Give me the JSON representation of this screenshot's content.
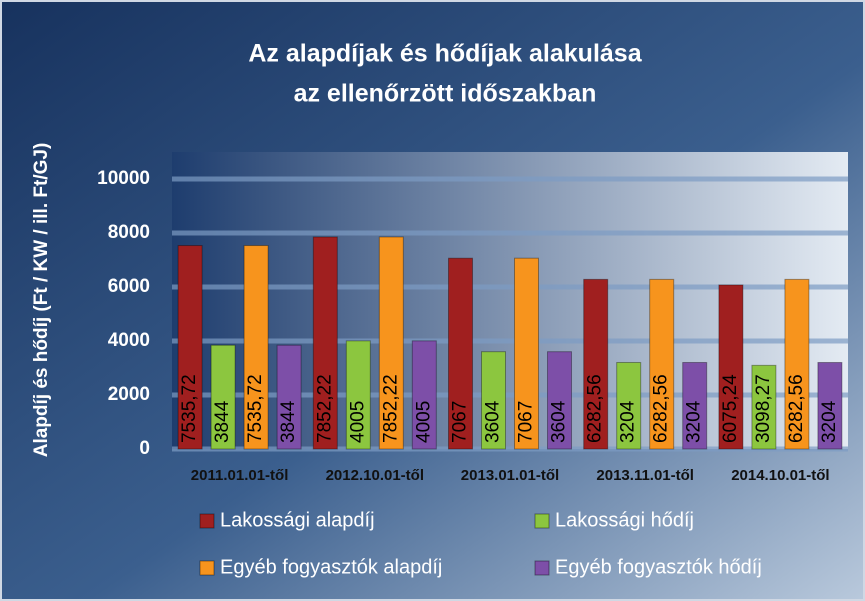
{
  "chart_data": {
    "type": "bar",
    "title": [
      "Az alapdíjak és hődíjak alakulása",
      "az ellenőrzött időszakban"
    ],
    "y_label": "Alapdíj és hődíj (Ft / KW / ill. Ft/GJ)",
    "categories": [
      "2011.01.01-től",
      "2012.10.01-től",
      "2013.01.01-től",
      "2013.11.01-től",
      "2014.10.01-től"
    ],
    "series": [
      {
        "name": "Lakossági alapdíj",
        "color": "#a01f1f",
        "values": [
          7535.72,
          7852.22,
          7067,
          6282.56,
          6075.24
        ],
        "value_labels": [
          "7535,72",
          "7852,22",
          "7067",
          "6282,56",
          "6075,24"
        ]
      },
      {
        "name": "Lakossági hődíj",
        "color": "#8cc63f",
        "values": [
          3844,
          4005,
          3604,
          3204,
          3098.27
        ],
        "value_labels": [
          "3844",
          "4005",
          "3604",
          "3204",
          "3098,27"
        ]
      },
      {
        "name": "Egyéb fogyasztók alapdíj",
        "color": "#f7941d",
        "values": [
          7535.72,
          7852.22,
          7067,
          6282.56,
          6282.56
        ],
        "value_labels": [
          "7535,72",
          "7852,22",
          "7067",
          "6282,56",
          "6282,56"
        ]
      },
      {
        "name": "Egyéb fogyasztók hődíj",
        "color": "#7d4fa8",
        "values": [
          3844,
          4005,
          3604,
          3204,
          3204
        ],
        "value_labels": [
          "3844",
          "4005",
          "3604",
          "3204",
          "3204"
        ]
      }
    ],
    "ylim": [
      0,
      11000
    ],
    "yticks": [
      0,
      2000,
      4000,
      6000,
      8000,
      10000
    ],
    "grid": true
  }
}
